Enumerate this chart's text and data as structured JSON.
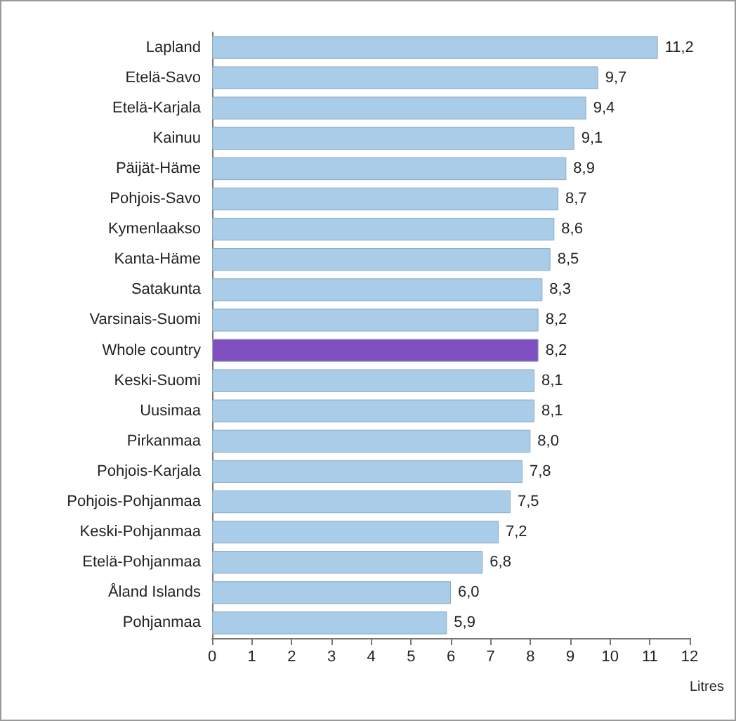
{
  "chart_data": {
    "type": "bar",
    "orientation": "horizontal",
    "categories": [
      "Lapland",
      "Etelä-Savo",
      "Etelä-Karjala",
      "Kainuu",
      "Päijät-Häme",
      "Pohjois-Savo",
      "Kymenlaakso",
      "Kanta-Häme",
      "Satakunta",
      "Varsinais-Suomi",
      "Whole country",
      "Keski-Suomi",
      "Uusimaa",
      "Pirkanmaa",
      "Pohjois-Karjala",
      "Pohjois-Pohjanmaa",
      "Keski-Pohjanmaa",
      "Etelä-Pohjanmaa",
      "Åland Islands",
      "Pohjanmaa"
    ],
    "values": [
      11.2,
      9.7,
      9.4,
      9.1,
      8.9,
      8.7,
      8.6,
      8.5,
      8.3,
      8.2,
      8.2,
      8.1,
      8.1,
      8.0,
      7.8,
      7.5,
      7.2,
      6.8,
      6.0,
      5.9
    ],
    "value_labels": [
      "11,2",
      "9,7",
      "9,4",
      "9,1",
      "8,9",
      "8,7",
      "8,6",
      "8,5",
      "8,3",
      "8,2",
      "8,2",
      "8,1",
      "8,1",
      "8,0",
      "7,8",
      "7,5",
      "7,2",
      "6,8",
      "6,0",
      "5,9"
    ],
    "colors": [
      "#a9cce8",
      "#a9cce8",
      "#a9cce8",
      "#a9cce8",
      "#a9cce8",
      "#a9cce8",
      "#a9cce8",
      "#a9cce8",
      "#a9cce8",
      "#a9cce8",
      "#8050c0",
      "#a9cce8",
      "#a9cce8",
      "#a9cce8",
      "#a9cce8",
      "#a9cce8",
      "#a9cce8",
      "#a9cce8",
      "#a9cce8",
      "#a9cce8"
    ],
    "xlabel": "Litres",
    "xlim": [
      0,
      12
    ],
    "xticks": [
      0,
      1,
      2,
      3,
      4,
      5,
      6,
      7,
      8,
      9,
      10,
      11,
      12
    ],
    "grid": false
  }
}
